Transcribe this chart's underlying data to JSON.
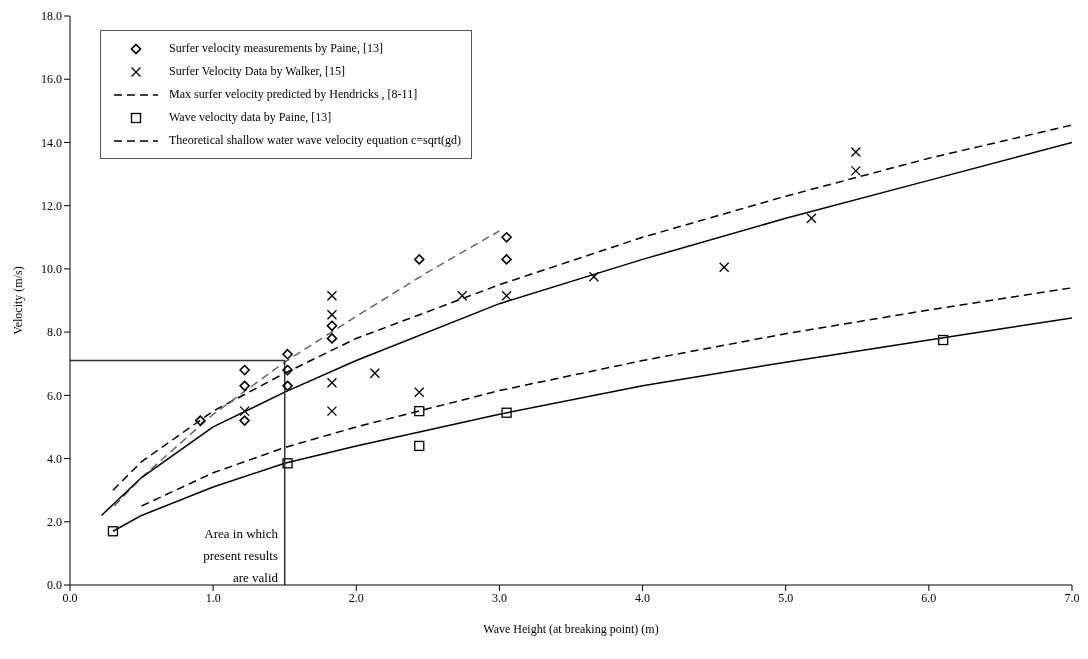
{
  "chart_data": {
    "type": "scatter",
    "xlabel": "Wave Height (at breaking point) (m)",
    "ylabel": "Velocity (m/s)",
    "xlim": [
      0,
      7
    ],
    "ylim": [
      0,
      18
    ],
    "xticks": [
      {
        "value": 0,
        "label": "0.0"
      },
      {
        "value": 1,
        "label": "1.0"
      },
      {
        "value": 2,
        "label": "2.0"
      },
      {
        "value": 3,
        "label": "3.0"
      },
      {
        "value": 4,
        "label": "4.0"
      },
      {
        "value": 5,
        "label": "5.0"
      },
      {
        "value": 6,
        "label": "6.0"
      },
      {
        "value": 7,
        "label": "7.0"
      }
    ],
    "yticks": [
      {
        "value": 0,
        "label": "0.0"
      },
      {
        "value": 2,
        "label": "2.0"
      },
      {
        "value": 4,
        "label": "4.0"
      },
      {
        "value": 6,
        "label": "6.0"
      },
      {
        "value": 8,
        "label": "8.0"
      },
      {
        "value": 10,
        "label": "10.0"
      },
      {
        "value": 12,
        "label": "12.0"
      },
      {
        "value": 14,
        "label": "14.0"
      },
      {
        "value": 16,
        "label": "16.0"
      },
      {
        "value": 18,
        "label": "18.0"
      }
    ],
    "legend": "top left",
    "annotations": [
      "Area in which present results are valid"
    ],
    "series": [
      {
        "name": "Surfer velocity measurements by Paine, [13]",
        "marker": "diamond",
        "color": "#000000",
        "x": [
          0.91,
          1.22,
          1.22,
          1.22,
          1.52,
          1.52,
          1.52,
          1.83,
          1.83,
          2.44,
          3.05,
          3.05
        ],
        "values": [
          5.2,
          6.8,
          6.3,
          5.2,
          7.3,
          6.8,
          6.3,
          8.2,
          7.8,
          10.3,
          11.0,
          10.3
        ]
      },
      {
        "name": "Surfer Velocity Data by Walker, [15]",
        "marker": "cross",
        "color": "#000000",
        "x": [
          1.22,
          1.83,
          1.83,
          1.83,
          1.83,
          2.13,
          2.44,
          2.74,
          3.05,
          3.66,
          4.57,
          5.18,
          5.49,
          5.49
        ],
        "values": [
          5.5,
          9.15,
          8.55,
          6.4,
          5.5,
          6.7,
          6.1,
          9.15,
          9.15,
          9.75,
          10.05,
          11.6,
          13.1,
          13.7
        ]
      },
      {
        "name": "Max surfer velocity predicted by Hendricks , [8-11]",
        "type": "line",
        "line_style": "dashed",
        "marker": "none",
        "color": "#000000",
        "x": [
          0.3,
          0.5,
          1,
          1.5,
          2,
          3,
          4,
          5,
          6,
          7
        ],
        "values": [
          3.0,
          3.9,
          5.5,
          6.7,
          7.8,
          9.5,
          11.0,
          12.3,
          13.5,
          14.55
        ]
      },
      {
        "name": "Wave velocity data by Paine, [13]",
        "marker": "square",
        "color": "#000000",
        "x": [
          0.3,
          1.52,
          2.44,
          2.44,
          3.05,
          6.1
        ],
        "values": [
          1.7,
          3.85,
          5.5,
          4.4,
          5.45,
          7.75
        ]
      },
      {
        "name": "Theoretical shallow water wave velocity equation c=sqrt(gd)",
        "type": "line",
        "line_style": "dashed",
        "marker": "none",
        "color": "#000000",
        "x": [
          0.5,
          1,
          1.5,
          2,
          3,
          4,
          5,
          6,
          7
        ],
        "values": [
          2.5,
          3.55,
          4.35,
          5.0,
          6.15,
          7.1,
          7.95,
          8.7,
          9.4
        ]
      },
      {
        "type": "line",
        "line_style": "dashed",
        "marker": "none",
        "color": "#666666",
        "x": [
          0.31,
          0.5,
          1,
          1.5,
          2,
          2.5,
          3
        ],
        "values": [
          2.5,
          3.4,
          5.4,
          7.05,
          8.5,
          9.9,
          11.2
        ]
      },
      {
        "type": "line",
        "line_style": "solid",
        "marker": "none",
        "color": "#000000",
        "x": [
          0.22,
          0.5,
          1,
          1.5,
          2,
          3,
          4,
          5,
          6,
          7
        ],
        "values": [
          2.2,
          3.4,
          5.0,
          6.1,
          7.1,
          8.9,
          10.3,
          11.6,
          12.8,
          14.0
        ]
      },
      {
        "type": "line",
        "line_style": "solid",
        "marker": "none",
        "color": "#000000",
        "x": [
          0.3,
          0.5,
          1,
          1.5,
          2,
          3,
          4,
          5,
          6,
          7
        ],
        "values": [
          1.7,
          2.2,
          3.1,
          3.85,
          4.4,
          5.4,
          6.3,
          7.05,
          7.75,
          8.45
        ]
      },
      {
        "type": "line",
        "line_style": "solid",
        "marker": "none",
        "color": "#333333",
        "x": [
          0,
          1.5,
          1.5
        ],
        "values": [
          7.1,
          7.1,
          0
        ]
      }
    ]
  }
}
